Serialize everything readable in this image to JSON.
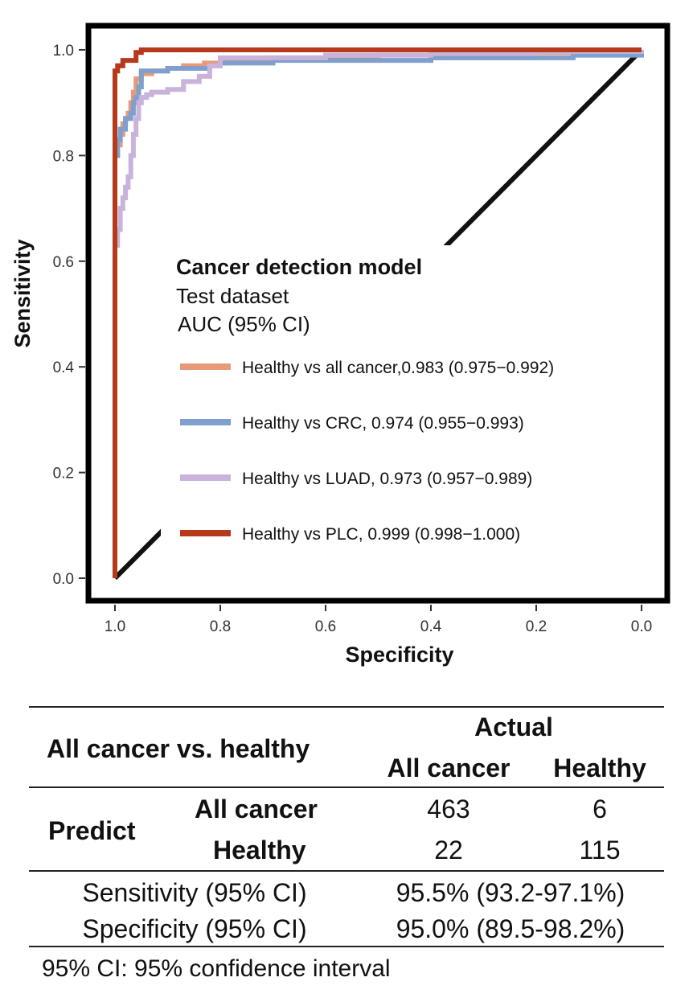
{
  "chart_data": {
    "type": "line",
    "title": "",
    "xlabel": "Specificity",
    "ylabel": "Sensitivity",
    "xlim": [
      1.0,
      0.0
    ],
    "ylim": [
      0.0,
      1.0
    ],
    "x_ticks": [
      "1.0",
      "0.8",
      "0.6",
      "0.4",
      "0.2",
      "0.0"
    ],
    "y_ticks": [
      "0.0",
      "0.2",
      "0.4",
      "0.6",
      "0.8",
      "1.0"
    ],
    "grid": false,
    "legend_position": "center-right",
    "legend_title": "Cancer detection model",
    "legend_subtitle": "Test dataset",
    "legend_subtitle2": "AUC (95% CI)",
    "reference_line": {
      "x": [
        1.0,
        0.0
      ],
      "y": [
        0.0,
        1.0
      ],
      "color": "#111111"
    },
    "series": [
      {
        "name": "Healthy vs all cancer,0.983 (0.975−0.992)",
        "color": "#E89A78",
        "x": [
          1.0,
          1.0,
          0.995,
          0.99,
          0.985,
          0.98,
          0.975,
          0.97,
          0.965,
          0.96,
          0.95,
          0.93,
          0.9,
          0.87,
          0.83,
          0.79,
          0.7,
          0.5,
          0.3,
          0.1,
          0.0
        ],
        "y": [
          0.0,
          0.8,
          0.82,
          0.84,
          0.86,
          0.87,
          0.88,
          0.9,
          0.92,
          0.945,
          0.955,
          0.96,
          0.965,
          0.97,
          0.975,
          0.98,
          0.985,
          0.99,
          0.995,
          1.0,
          1.0
        ]
      },
      {
        "name": "Healthy vs CRC, 0.974 (0.955−0.993)",
        "color": "#7F9FCC",
        "x": [
          1.0,
          1.0,
          0.995,
          0.99,
          0.98,
          0.97,
          0.965,
          0.96,
          0.955,
          0.95,
          0.92,
          0.9,
          0.85,
          0.82,
          0.8,
          0.75,
          0.7,
          0.6,
          0.4,
          0.2,
          0.13,
          0.07,
          0.0
        ],
        "y": [
          0.0,
          0.8,
          0.83,
          0.85,
          0.87,
          0.88,
          0.9,
          0.91,
          0.93,
          0.96,
          0.96,
          0.965,
          0.965,
          0.97,
          0.975,
          0.975,
          0.98,
          0.98,
          0.985,
          0.985,
          0.99,
          0.99,
          1.0
        ]
      },
      {
        "name": "Healthy vs LUAD, 0.973 (0.957−0.989)",
        "color": "#C9B3DB",
        "x": [
          1.0,
          1.0,
          0.995,
          0.99,
          0.985,
          0.98,
          0.975,
          0.97,
          0.965,
          0.96,
          0.955,
          0.95,
          0.94,
          0.93,
          0.9,
          0.87,
          0.84,
          0.82,
          0.8,
          0.6,
          0.4,
          0.2,
          0.0
        ],
        "y": [
          0.0,
          0.63,
          0.66,
          0.7,
          0.72,
          0.74,
          0.76,
          0.8,
          0.84,
          0.87,
          0.9,
          0.91,
          0.915,
          0.92,
          0.925,
          0.94,
          0.95,
          0.97,
          0.985,
          0.99,
          0.993,
          0.997,
          1.0
        ]
      },
      {
        "name": "Healthy vs PLC, 0.999 (0.998−1.000)",
        "color": "#B5391A",
        "x": [
          1.0,
          1.0,
          0.995,
          0.99,
          0.985,
          0.97,
          0.96,
          0.95,
          0.0
        ],
        "y": [
          0.0,
          0.96,
          0.97,
          0.97,
          0.98,
          0.98,
          0.995,
          1.0,
          1.0
        ]
      }
    ]
  },
  "table": {
    "corner_label": "All cancer vs. healthy",
    "actual_label": "Actual",
    "col_all_cancer": "All cancer",
    "col_healthy": "Healthy",
    "predict_label": "Predict",
    "row_all_cancer": "All cancer",
    "row_healthy": "Healthy",
    "cell_ac_ac": "463",
    "cell_ac_h": "6",
    "cell_h_ac": "22",
    "cell_h_h": "115",
    "sensitivity_label": "Sensitivity (95% CI)",
    "sensitivity_value": "95.5% (93.2-97.1%)",
    "specificity_label": "Specificity (95% CI)",
    "specificity_value": "95.0% (89.5-98.2%)"
  },
  "footnote": "95% CI: 95% confidence interval"
}
